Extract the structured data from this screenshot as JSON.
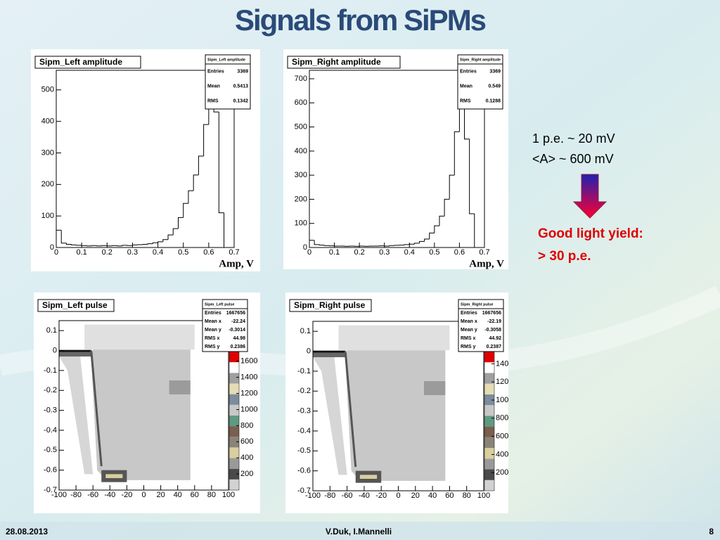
{
  "title": "Signals from SiPMs",
  "notes": [
    "1 p.e. ~ 20 mV",
    "<A> ~ 600 mV"
  ],
  "highlight": [
    "Good light yield:",
    "> 30 p.e."
  ],
  "footer": {
    "date": "28.08.2013",
    "authors": "V.Duk, I.Mannelli",
    "page": "8"
  },
  "chart_data": [
    {
      "type": "histogram",
      "title": "Sipm_Left amplitude",
      "xlabel": "Amp, V",
      "color": "#000000",
      "stats": [
        {
          "label": "Entries",
          "value": "3369"
        },
        {
          "label": "Mean",
          "value": "0.5413"
        },
        {
          "label": "RMS",
          "value": "0.1342"
        }
      ],
      "bins": [
        0,
        0.02,
        0.04,
        0.06,
        0.08,
        0.1,
        0.12,
        0.14,
        0.16,
        0.18,
        0.2,
        0.22,
        0.24,
        0.26,
        0.28,
        0.3,
        0.32,
        0.34,
        0.36,
        0.38,
        0.4,
        0.42,
        0.44,
        0.46,
        0.48,
        0.5,
        0.52,
        0.54,
        0.56,
        0.58,
        0.6,
        0.62,
        0.64,
        0.66,
        0.68,
        0.7
      ],
      "counts": [
        55,
        14,
        10,
        8,
        7,
        6,
        5,
        6,
        5,
        6,
        5,
        6,
        5,
        7,
        6,
        8,
        9,
        10,
        12,
        15,
        18,
        25,
        40,
        60,
        95,
        140,
        180,
        230,
        290,
        390,
        540,
        430,
        110,
        0,
        0
      ],
      "xlim": [
        0,
        0.7
      ],
      "ylim": [
        0,
        562
      ],
      "xticks": [
        0,
        0.1,
        0.2,
        0.3,
        0.4,
        0.5,
        0.6,
        0.7
      ],
      "yticks": [
        0,
        100,
        200,
        300,
        400,
        500
      ]
    },
    {
      "type": "histogram",
      "title": "Sipm_Right amplitude",
      "xlabel": "Amp, V",
      "color": "#000000",
      "stats": [
        {
          "label": "Entries",
          "value": "3369"
        },
        {
          "label": "Mean",
          "value": "0.549"
        },
        {
          "label": "RMS",
          "value": "0.1288"
        }
      ],
      "bins": [
        0,
        0.02,
        0.04,
        0.06,
        0.08,
        0.1,
        0.12,
        0.14,
        0.16,
        0.18,
        0.2,
        0.22,
        0.24,
        0.26,
        0.28,
        0.3,
        0.32,
        0.34,
        0.36,
        0.38,
        0.4,
        0.42,
        0.44,
        0.46,
        0.48,
        0.5,
        0.52,
        0.54,
        0.56,
        0.58,
        0.6,
        0.62,
        0.64,
        0.66,
        0.68,
        0.7
      ],
      "counts": [
        30,
        12,
        10,
        8,
        7,
        6,
        6,
        5,
        6,
        5,
        6,
        5,
        6,
        6,
        7,
        6,
        8,
        9,
        10,
        12,
        14,
        18,
        25,
        35,
        60,
        90,
        130,
        200,
        300,
        480,
        700,
        450,
        140,
        0,
        0
      ],
      "xlim": [
        0,
        0.7
      ],
      "ylim": [
        0,
        735
      ],
      "xticks": [
        0,
        0.1,
        0.2,
        0.3,
        0.4,
        0.5,
        0.6,
        0.7
      ],
      "yticks": [
        0,
        100,
        200,
        300,
        400,
        500,
        600,
        700
      ]
    },
    {
      "type": "heatmap",
      "title": "Sipm_Left pulse",
      "stats": [
        {
          "label": "Entries",
          "value": "1667656"
        },
        {
          "label": "Mean x",
          "value": "-22.24"
        },
        {
          "label": "Mean y",
          "value": "-0.3014"
        },
        {
          "label": "RMS x",
          "value": "44.98"
        },
        {
          "label": "RMS y",
          "value": "0.2386"
        }
      ],
      "xlim": [
        -100,
        100
      ],
      "ylim": [
        -0.7,
        0.15
      ],
      "xticks": [
        -100,
        -80,
        -60,
        -40,
        -20,
        0,
        20,
        40,
        60,
        80,
        100
      ],
      "yticks": [
        -0.7,
        -0.6,
        -0.5,
        -0.4,
        -0.3,
        -0.2,
        -0.1,
        0,
        0.1
      ],
      "zlim": [
        0,
        1720
      ],
      "zticks": [
        200,
        400,
        600,
        800,
        1000,
        1200,
        1400,
        1600
      ],
      "palette": [
        "#d2d2d2",
        "#4a4a4a",
        "#9a9a9a",
        "#d9cf9e",
        "#8a8478",
        "#7a5e50",
        "#5e9a82",
        "#c8c8c8",
        "#7c8c9c",
        "#e6dcb4",
        "#a0a0a0",
        "#ffffff",
        "#e00000"
      ]
    },
    {
      "type": "heatmap",
      "title": "Sipm_Right pulse",
      "stats": [
        {
          "label": "Entries",
          "value": "1667656"
        },
        {
          "label": "Mean x",
          "value": "-22.19"
        },
        {
          "label": "Mean y",
          "value": "-0.3058"
        },
        {
          "label": "RMS x",
          "value": "44.92"
        },
        {
          "label": "RMS y",
          "value": "0.2387"
        }
      ],
      "xlim": [
        -100,
        100
      ],
      "ylim": [
        -0.7,
        0.15
      ],
      "xticks": [
        -100,
        -80,
        -60,
        -40,
        -20,
        0,
        20,
        40,
        60,
        80,
        100
      ],
      "yticks": [
        -0.7,
        -0.6,
        -0.5,
        -0.4,
        -0.3,
        -0.2,
        -0.1,
        0,
        0.1
      ],
      "zlim": [
        0,
        1535
      ],
      "zticks": [
        200,
        400,
        600,
        800,
        1000,
        1200,
        1400
      ],
      "palette": [
        "#d2d2d2",
        "#4a4a4a",
        "#9a9a9a",
        "#d9cf9e",
        "#8a8478",
        "#7a5e50",
        "#5e9a82",
        "#c8c8c8",
        "#7c8c9c",
        "#e6dcb4",
        "#a0a0a0",
        "#ffffff",
        "#e00000"
      ]
    }
  ]
}
